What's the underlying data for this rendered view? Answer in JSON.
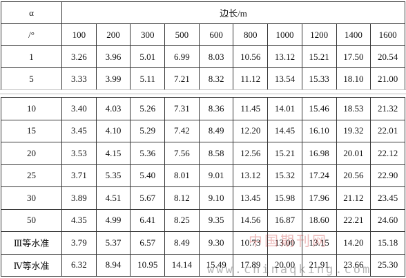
{
  "table": {
    "header": {
      "alpha": "α",
      "unit": "/°",
      "title": "边长/m",
      "columns": [
        "100",
        "200",
        "300",
        "500",
        "600",
        "800",
        "1000",
        "1200",
        "1400",
        "1600"
      ]
    },
    "rows_top": [
      [
        "1",
        "3.26",
        "3.96",
        "5.01",
        "6.99",
        "8.03",
        "10.56",
        "13.12",
        "15.21",
        "17.50",
        "20.54"
      ],
      [
        "5",
        "3.33",
        "3.99",
        "5.11",
        "7.21",
        "8.32",
        "11.12",
        "13.54",
        "15.33",
        "18.10",
        "21.00"
      ]
    ],
    "rows_bottom": [
      [
        "10",
        "3.40",
        "4.03",
        "5.26",
        "7.31",
        "8.36",
        "11.45",
        "14.01",
        "15.46",
        "18.53",
        "21.32"
      ],
      [
        "15",
        "3.45",
        "4.10",
        "5.29",
        "7.42",
        "8.49",
        "12.20",
        "14.45",
        "16.10",
        "19.32",
        "22.01"
      ],
      [
        "20",
        "3.53",
        "4.15",
        "5.36",
        "7.56",
        "8.58",
        "12.56",
        "15.21",
        "16.98",
        "20.01",
        "22.12"
      ],
      [
        "25",
        "3.71",
        "5.35",
        "5.40",
        "8.01",
        "9.01",
        "13.12",
        "15.32",
        "17.24",
        "20.56",
        "22.90"
      ],
      [
        "30",
        "3.89",
        "4.51",
        "5.67",
        "8.12",
        "9.10",
        "13.45",
        "15.98",
        "17.96",
        "21.12",
        "23.45"
      ],
      [
        "50",
        "4.35",
        "4.99",
        "6.41",
        "8.25",
        "9.35",
        "14.56",
        "16.87",
        "18.60",
        "22.21",
        "24.60"
      ],
      [
        "Ⅲ等水准",
        "3.79",
        "5.37",
        "6.57",
        "8.49",
        "9.30",
        "10.73",
        "13.00",
        "13.15",
        "14.20",
        "15.18"
      ],
      [
        "Ⅳ等水准",
        "6.32",
        "8.94",
        "10.95",
        "14.14",
        "15.49",
        "17.89",
        "20.00",
        "21.91",
        "23.66",
        "25.30"
      ]
    ]
  },
  "watermark": {
    "name": "中国期刊网",
    "url": "www.chinaqking.com"
  }
}
